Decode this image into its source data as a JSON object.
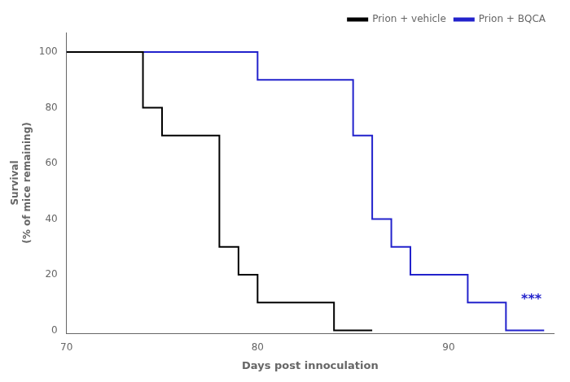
{
  "chart_data": {
    "type": "step",
    "x_label": "Days post innoculation",
    "y_label": "Survival\n(% of mice remaining)",
    "series": [
      {
        "name": "Prion + vehicle",
        "color": "#000000",
        "x": [
          70,
          74,
          74,
          75,
          75,
          78,
          78,
          79,
          79,
          80,
          80,
          84,
          84,
          85,
          85,
          86
        ],
        "values": [
          100,
          100,
          80,
          80,
          70,
          70,
          30,
          30,
          20,
          20,
          10,
          10,
          0,
          0,
          0,
          0
        ]
      },
      {
        "name": "Prion + BQCA",
        "color": "#2222cc",
        "x": [
          70,
          80,
          80,
          85,
          85,
          86,
          86,
          87,
          87,
          88,
          88,
          91,
          91,
          92,
          92,
          93,
          93,
          95
        ],
        "values": [
          100,
          100,
          90,
          90,
          70,
          70,
          40,
          40,
          30,
          30,
          20,
          20,
          10,
          10,
          10,
          10,
          0,
          0
        ]
      }
    ],
    "annotations": [
      {
        "text": "***",
        "x": 93.8,
        "y": 11,
        "color": "#2222cc"
      }
    ],
    "xlim": [
      70,
      95.5
    ],
    "ylim": [
      -1,
      107
    ],
    "xticks": [
      70,
      80,
      90
    ],
    "yticks": [
      0,
      20,
      40,
      60,
      80,
      100
    ],
    "grid": false,
    "legend": "upper right"
  }
}
